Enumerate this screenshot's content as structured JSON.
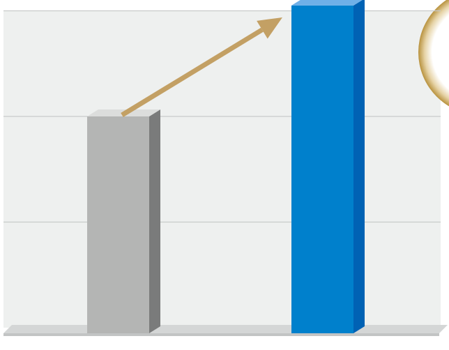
{
  "chart_data": {
    "type": "bar",
    "title": "",
    "xlabel": "",
    "ylabel": "",
    "categories": [
      "",
      ""
    ],
    "values": [
      2.0,
      3.05
    ],
    "ylim": [
      0,
      3.05
    ],
    "grid": true,
    "style": "3d",
    "bar_colors": [
      "#b4b5b4",
      "#0080cc"
    ],
    "annotation": {
      "type": "arrow",
      "from_bar": 0,
      "to_bar": 1,
      "color": "#c3a064"
    },
    "decoration": {
      "type": "circle-glow",
      "color": "#b8923e",
      "position": "top-right"
    }
  },
  "colors": {
    "plot_background": "#eef0ef",
    "gridline": "#c8caca",
    "floor": "#d4d6d6"
  }
}
